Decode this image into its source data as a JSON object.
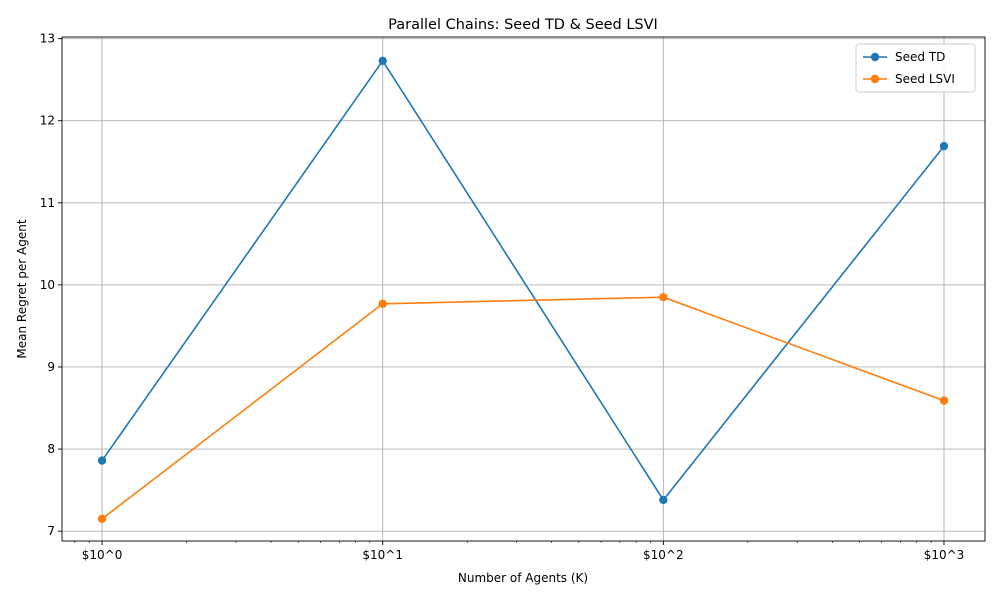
{
  "chart_data": {
    "type": "line",
    "title": "Parallel Chains: Seed TD & Seed LSVI",
    "xlabel": "Number of Agents (K)",
    "ylabel": "Mean Regret per Agent",
    "x_scale": "log",
    "x": [
      1,
      10,
      100,
      1000
    ],
    "x_tick_labels": [
      "$10^0",
      "$10^1",
      "$10^2",
      "$10^3"
    ],
    "xlim": [
      0.72,
      1400
    ],
    "ylim": [
      6.88,
      13.02
    ],
    "y_ticks": [
      7,
      8,
      9,
      10,
      11,
      12,
      13
    ],
    "grid": true,
    "legend_position": "top-right",
    "series": [
      {
        "name": "Seed TD",
        "color": "#1f77b4",
        "values": [
          7.86,
          12.73,
          7.38,
          11.69
        ]
      },
      {
        "name": "Seed LSVI",
        "color": "#ff7f0e",
        "values": [
          7.15,
          9.77,
          9.85,
          8.59
        ]
      }
    ]
  }
}
